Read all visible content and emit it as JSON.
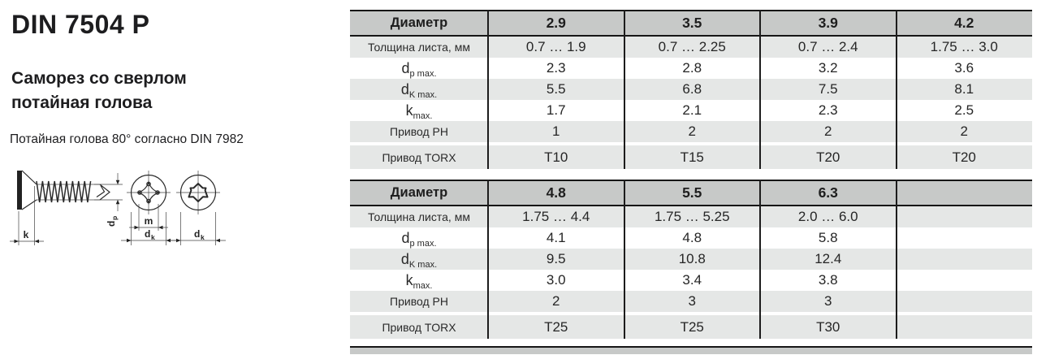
{
  "left_panel": {
    "title": "DIN 7504 P",
    "subtitle_line1": "Саморез со сверлом",
    "subtitle_line2": "потайная голова",
    "note": "Потайная голова 80° согласно DIN 7982"
  },
  "drawing": {
    "dim_k": "k",
    "dim_dp_main": "d",
    "dim_dp_sub": "p",
    "dim_m": "m",
    "dim_dk_main": "d",
    "dim_dk_sub": "k"
  },
  "colors": {
    "header_bg": "#c7c9c8",
    "shaded_row_bg": "#e5e7e6",
    "border": "#1c1c1c",
    "text": "#222222"
  },
  "tables": [
    {
      "header_label": "Диаметр",
      "columns": [
        "2.9",
        "3.5",
        "3.9",
        "4.2"
      ],
      "rows": [
        {
          "label": {
            "text": "Толщина листа, мм"
          },
          "values": [
            "0.7 … 1.9",
            "0.7 … 2.25",
            "0.7 … 2.4",
            "1.75 … 3.0"
          ],
          "shaded": true
        },
        {
          "label": {
            "main": "d",
            "sub": "p max."
          },
          "values": [
            "2.3",
            "2.8",
            "3.2",
            "3.6"
          ],
          "shaded": false
        },
        {
          "label": {
            "main": "d",
            "sub": "K max."
          },
          "values": [
            "5.5",
            "6.8",
            "7.5",
            "8.1"
          ],
          "shaded": true
        },
        {
          "label": {
            "main": "k",
            "sub": "max."
          },
          "values": [
            "1.7",
            "2.1",
            "2.3",
            "2.5"
          ],
          "shaded": false
        },
        {
          "label": {
            "text": "Привод PH"
          },
          "values": [
            "1",
            "2",
            "2",
            "2"
          ],
          "shaded": true
        },
        {
          "label": {
            "text": "Привод TORX"
          },
          "values": [
            "T10",
            "T15",
            "T20",
            "T20"
          ],
          "shaded": true,
          "gap_before": true
        }
      ]
    },
    {
      "header_label": "Диаметр",
      "columns": [
        "4.8",
        "5.5",
        "6.3",
        ""
      ],
      "rows": [
        {
          "label": {
            "text": "Толщина листа, мм"
          },
          "values": [
            "1.75 … 4.4",
            "1.75 … 5.25",
            "2.0 … 6.0",
            ""
          ],
          "shaded": true
        },
        {
          "label": {
            "main": "d",
            "sub": "p max."
          },
          "values": [
            "4.1",
            "4.8",
            "5.8",
            ""
          ],
          "shaded": false
        },
        {
          "label": {
            "main": "d",
            "sub": "K max."
          },
          "values": [
            "9.5",
            "10.8",
            "12.4",
            ""
          ],
          "shaded": true
        },
        {
          "label": {
            "main": "k",
            "sub": "max."
          },
          "values": [
            "3.0",
            "3.4",
            "3.8",
            ""
          ],
          "shaded": false
        },
        {
          "label": {
            "text": "Привод PH"
          },
          "values": [
            "2",
            "3",
            "3",
            ""
          ],
          "shaded": true
        },
        {
          "label": {
            "main": "",
            "sub": ""
          },
          "values": [
            "T25",
            "T25",
            "T30",
            ""
          ],
          "shaded": true,
          "gap_before": true,
          "label_text": "Привод TORX"
        }
      ]
    }
  ]
}
